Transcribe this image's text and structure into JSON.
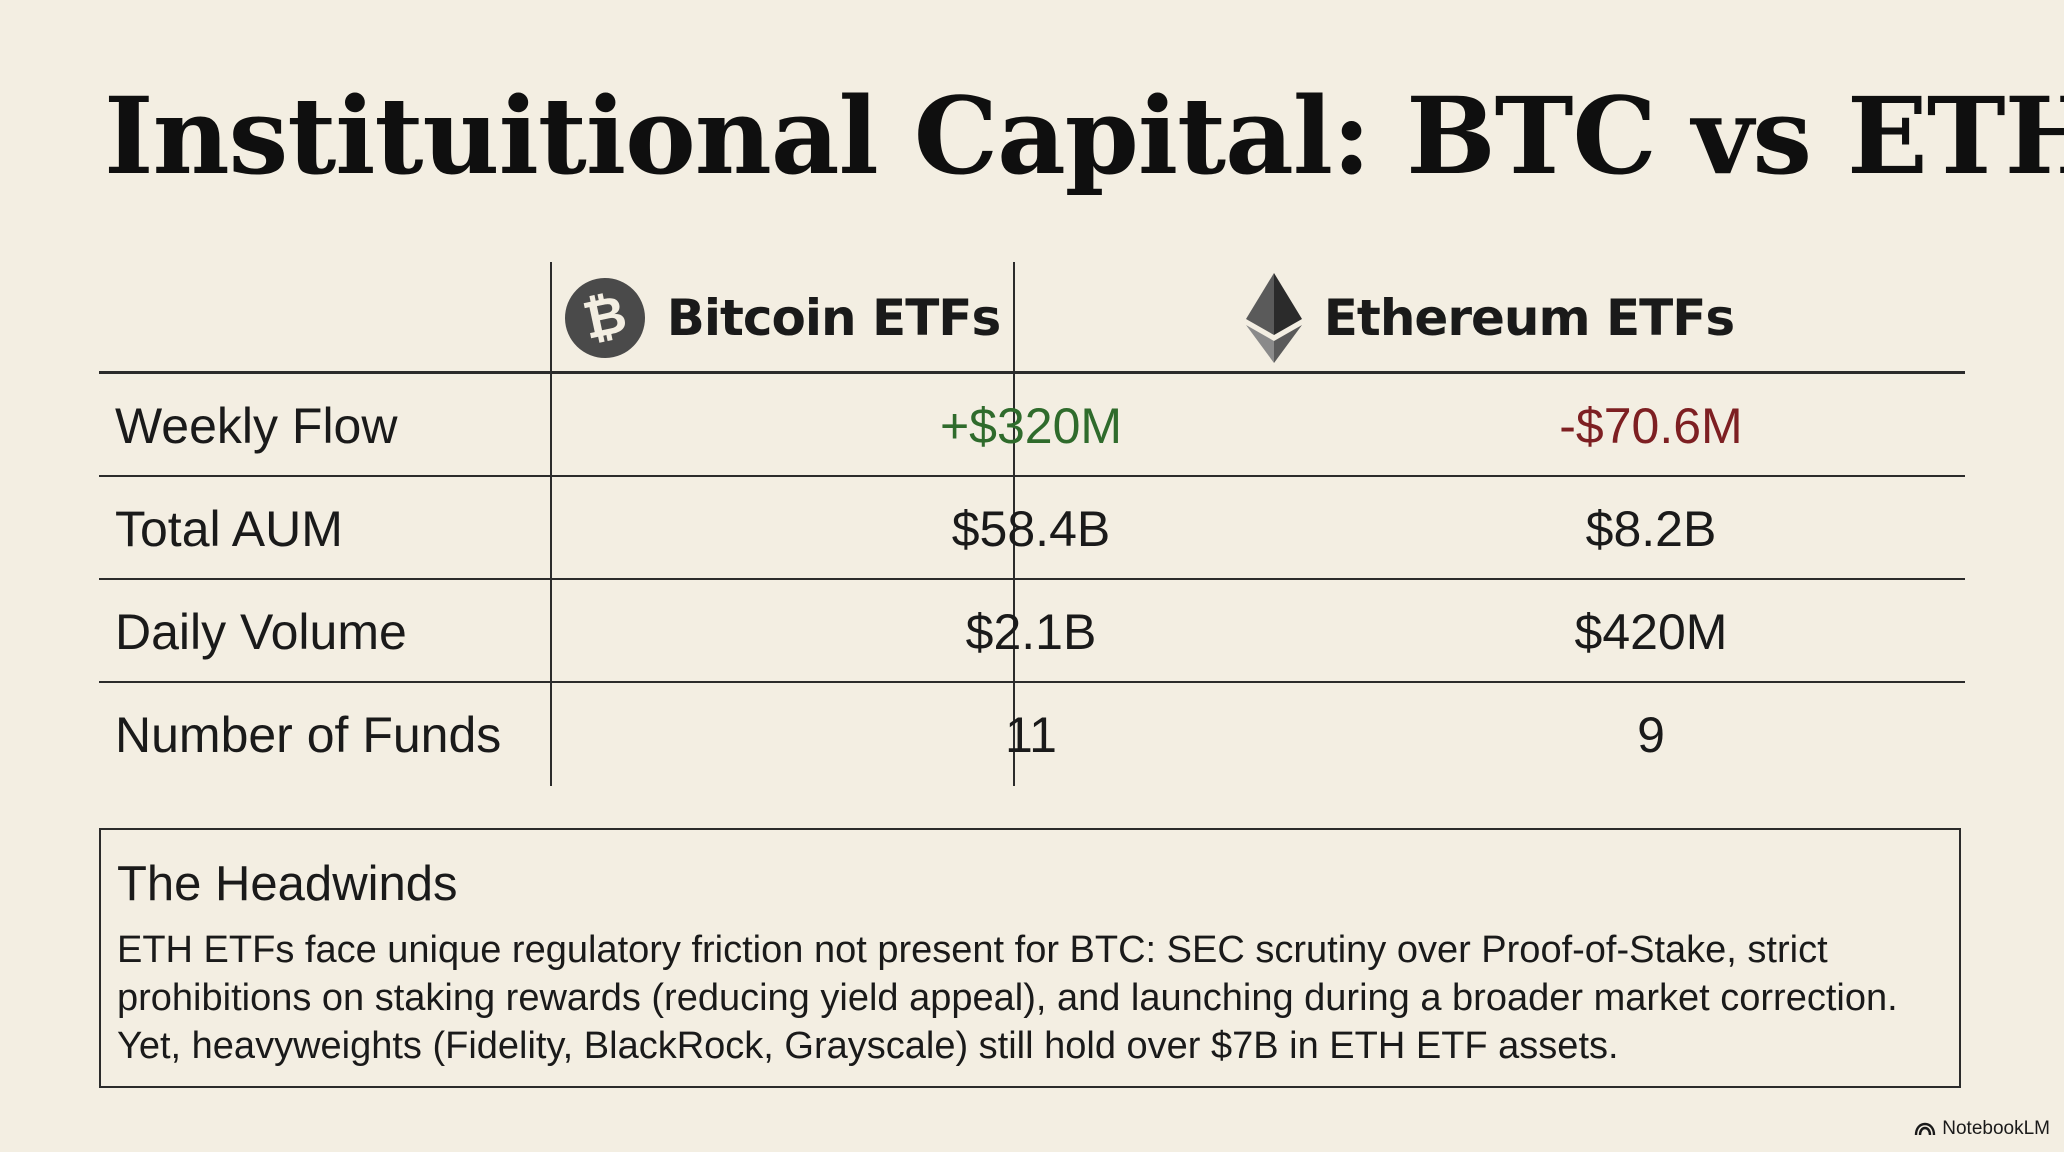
{
  "slide": {
    "title": "Instituitional Capital: BTC vs ETH"
  },
  "table": {
    "columns": [
      {
        "label": "Bitcoin ETFs",
        "icon": "bitcoin-icon",
        "icon_glyph": "₿"
      },
      {
        "label": "Ethereum ETFs",
        "icon": "ethereum-icon"
      }
    ],
    "rows": [
      {
        "metric": "Weekly Flow",
        "btc": "+$320M",
        "eth": "-$70.6M"
      },
      {
        "metric": "Total AUM",
        "btc": "$58.4B",
        "eth": "$8.2B"
      },
      {
        "metric": "Daily Volume",
        "btc": "$2.1B",
        "eth": "$420M"
      },
      {
        "metric": "Number of Funds",
        "btc": "11",
        "eth": "9"
      }
    ]
  },
  "headwinds": {
    "title": "The Headwinds",
    "body": "ETH ETFs face unique regulatory friction not present for BTC: SEC scrutiny over Proof-of-Stake, strict prohibitions on staking rewards (reducing yield appeal), and launching during a broader market correction. Yet, heavyweights (Fidelity, BlackRock, Grayscale) still hold over $7B in ETH ETF assets."
  },
  "brand": {
    "label": "NotebookLM",
    "icon": "notebooklm-icon"
  },
  "colors": {
    "background": "#f3eee2",
    "text": "#141414",
    "rule": "#2b2b2b",
    "positive": "#2f6b2c",
    "negative": "#7d1f22",
    "btc_icon": "#4a4a4a",
    "eth_icon_dark": "#2b2b2b",
    "eth_icon_mid": "#5a5a5a",
    "eth_icon_light": "#8a8a8a"
  }
}
